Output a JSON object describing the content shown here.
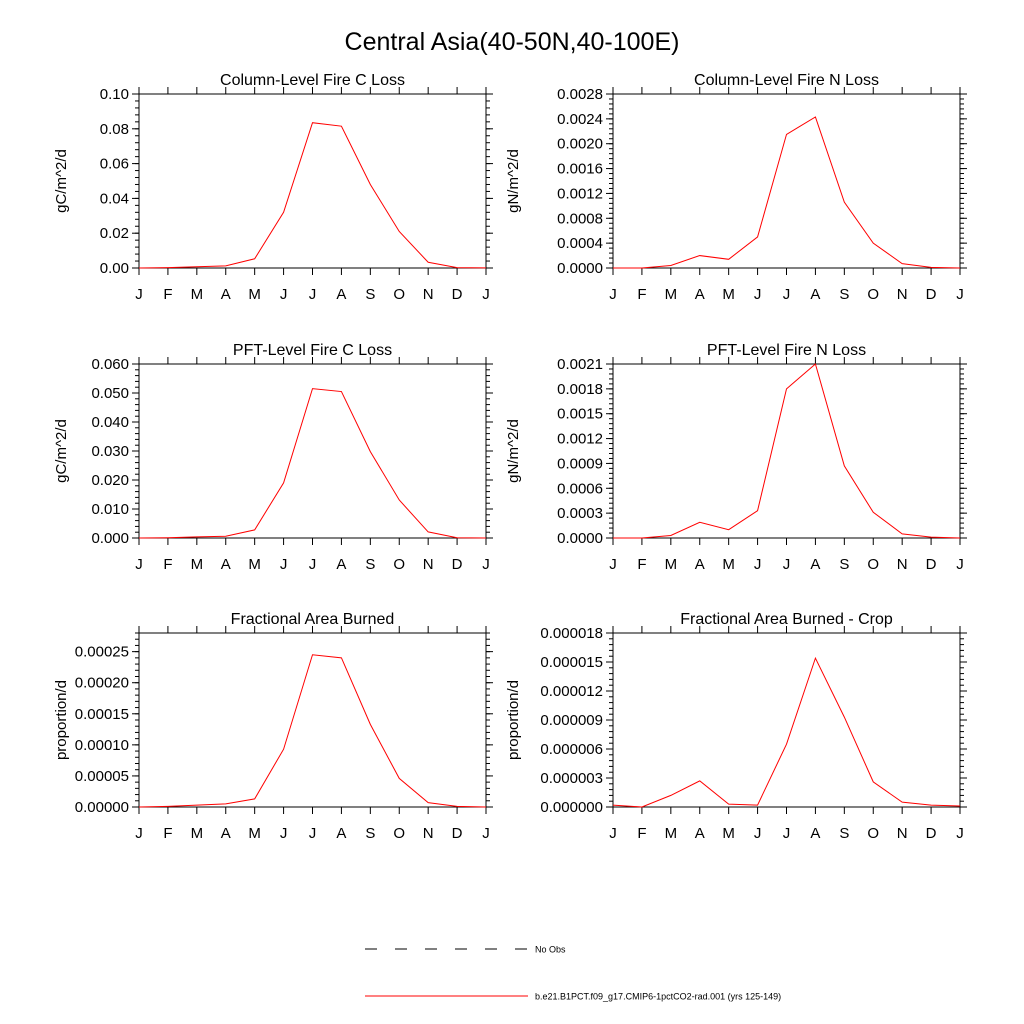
{
  "page_title": "Central Asia(40-50N,40-100E)",
  "colors": {
    "model": "#ff0000",
    "obs": "#000000",
    "axis": "#000000"
  },
  "legend": {
    "items": [
      {
        "label": "No Obs",
        "style": "dashed",
        "color": "#000000"
      },
      {
        "label": "b.e21.B1PCT.f09_g17.CMIP6-1pctCO2-rad.001 (yrs 125-149)",
        "style": "solid",
        "color": "#ff0000"
      }
    ]
  },
  "chart_data": [
    {
      "type": "line",
      "title": "Column-Level Fire C Loss",
      "ylabel": "gC/m^2/d",
      "xlabel": "",
      "categories": [
        "J",
        "F",
        "M",
        "A",
        "M",
        "J",
        "J",
        "A",
        "S",
        "O",
        "N",
        "D",
        "J"
      ],
      "ylim": [
        0,
        0.1
      ],
      "yticks": [
        "0.00",
        "0.02",
        "0.04",
        "0.06",
        "0.08",
        "0.10"
      ],
      "ytick_values": [
        0,
        0.02,
        0.04,
        0.06,
        0.08,
        0.1
      ],
      "series": [
        {
          "color": "#ff0000",
          "values": [
            0.0,
            0.0002,
            0.0007,
            0.0012,
            0.0053,
            0.032,
            0.0835,
            0.0815,
            0.048,
            0.021,
            0.0033,
            0.0002,
            0.0001
          ]
        }
      ]
    },
    {
      "type": "line",
      "title": "Column-Level Fire N Loss",
      "ylabel": "gN/m^2/d",
      "xlabel": "",
      "categories": [
        "J",
        "F",
        "M",
        "A",
        "M",
        "J",
        "J",
        "A",
        "S",
        "O",
        "N",
        "D",
        "J"
      ],
      "ylim": [
        0,
        0.0028
      ],
      "yticks": [
        "0.0000",
        "0.0004",
        "0.0008",
        "0.0012",
        "0.0016",
        "0.0020",
        "0.0024",
        "0.0028"
      ],
      "ytick_values": [
        0,
        0.0004,
        0.0008,
        0.0012,
        0.0016,
        0.002,
        0.0024,
        0.0028
      ],
      "series": [
        {
          "color": "#ff0000",
          "values": [
            0.0,
            0.0,
            4e-05,
            0.0002,
            0.00014,
            0.0005,
            0.00215,
            0.00243,
            0.00106,
            0.0004,
            7e-05,
            1e-05,
            0.0
          ]
        }
      ]
    },
    {
      "type": "line",
      "title": "PFT-Level Fire C Loss",
      "ylabel": "gC/m^2/d",
      "xlabel": "",
      "categories": [
        "J",
        "F",
        "M",
        "A",
        "M",
        "J",
        "J",
        "A",
        "S",
        "O",
        "N",
        "D",
        "J"
      ],
      "ylim": [
        0,
        0.06
      ],
      "yticks": [
        "0.000",
        "0.010",
        "0.020",
        "0.030",
        "0.040",
        "0.050",
        "0.060"
      ],
      "ytick_values": [
        0,
        0.01,
        0.02,
        0.03,
        0.04,
        0.05,
        0.06
      ],
      "series": [
        {
          "color": "#ff0000",
          "values": [
            0.0,
            0.0001,
            0.0004,
            0.0006,
            0.0028,
            0.019,
            0.0515,
            0.0505,
            0.0298,
            0.0131,
            0.0021,
            0.0001,
            0.0
          ]
        }
      ]
    },
    {
      "type": "line",
      "title": "PFT-Level Fire N Loss",
      "ylabel": "gN/m^2/d",
      "xlabel": "",
      "categories": [
        "J",
        "F",
        "M",
        "A",
        "M",
        "J",
        "J",
        "A",
        "S",
        "O",
        "N",
        "D",
        "J"
      ],
      "ylim": [
        0,
        0.0021
      ],
      "yticks": [
        "0.0000",
        "0.0003",
        "0.0006",
        "0.0009",
        "0.0012",
        "0.0015",
        "0.0018",
        "0.0021"
      ],
      "ytick_values": [
        0,
        0.0003,
        0.0006,
        0.0009,
        0.0012,
        0.0015,
        0.0018,
        0.0021
      ],
      "series": [
        {
          "color": "#ff0000",
          "values": [
            0.0,
            0.0,
            3e-05,
            0.00019,
            0.0001,
            0.00033,
            0.0018,
            0.0021,
            0.00087,
            0.00031,
            5e-05,
            1e-05,
            0.0
          ]
        }
      ]
    },
    {
      "type": "line",
      "title": "Fractional Area Burned",
      "ylabel": "proportion/d",
      "xlabel": "",
      "categories": [
        "J",
        "F",
        "M",
        "A",
        "M",
        "J",
        "J",
        "A",
        "S",
        "O",
        "N",
        "D",
        "J"
      ],
      "ylim": [
        0,
        0.00028
      ],
      "yticks": [
        "0.00000",
        "0.00005",
        "0.00010",
        "0.00015",
        "0.00020",
        "0.00025"
      ],
      "ytick_values": [
        0,
        5e-05,
        0.0001,
        0.00015,
        0.0002,
        0.00025
      ],
      "series": [
        {
          "color": "#ff0000",
          "values": [
            0.0,
            1e-06,
            3e-06,
            5e-06,
            1.3e-05,
            9.3e-05,
            0.000245,
            0.00024,
            0.000133,
            4.6e-05,
            7e-06,
            1e-06,
            0.0
          ]
        }
      ]
    },
    {
      "type": "line",
      "title": "Fractional Area Burned - Crop",
      "ylabel": "proportion/d",
      "xlabel": "",
      "categories": [
        "J",
        "F",
        "M",
        "A",
        "M",
        "J",
        "J",
        "A",
        "S",
        "O",
        "N",
        "D",
        "J"
      ],
      "ylim": [
        0,
        1.8e-05
      ],
      "yticks": [
        "0.000000",
        "0.000003",
        "0.000006",
        "0.000009",
        "0.000012",
        "0.000015",
        "0.000018"
      ],
      "ytick_values": [
        0,
        3e-06,
        6e-06,
        9e-06,
        1.2e-05,
        1.5e-05,
        1.8e-05
      ],
      "series": [
        {
          "color": "#ff0000",
          "values": [
            2e-07,
            0.0,
            1.2e-06,
            2.7e-06,
            3e-07,
            2e-07,
            6.5e-06,
            1.54e-05,
            9.3e-06,
            2.6e-06,
            5e-07,
            2e-07,
            1e-07
          ]
        }
      ]
    }
  ]
}
